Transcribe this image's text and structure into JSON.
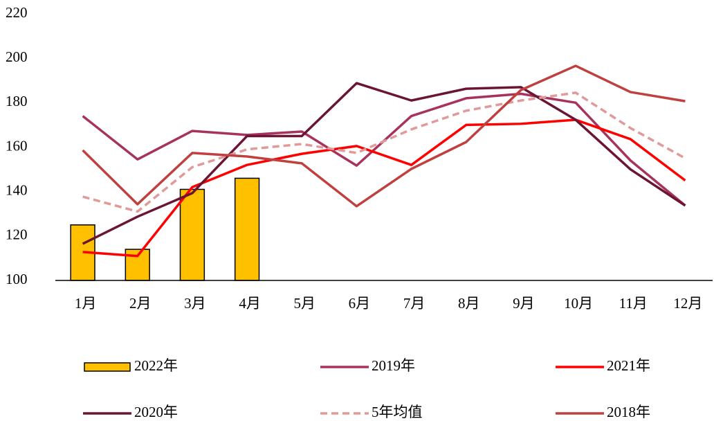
{
  "chart_data": {
    "type": "combo",
    "categories": [
      "1月",
      "2月",
      "3月",
      "4月",
      "5月",
      "6月",
      "7月",
      "8月",
      "9月",
      "10月",
      "11月",
      "12月"
    ],
    "ylim": [
      100,
      220
    ],
    "yticks": [
      100,
      120,
      140,
      160,
      180,
      200,
      220
    ],
    "series": [
      {
        "name": "2022年",
        "type": "bar",
        "color": "#ffc000",
        "values": [
          125,
          114,
          141,
          146,
          null,
          null,
          null,
          null,
          null,
          null,
          null,
          null
        ]
      },
      {
        "name": "2019年",
        "type": "line",
        "color": "#a8325e",
        "values": [
          174,
          154.5,
          167.3,
          165.5,
          167,
          151.7,
          174,
          182,
          184,
          180,
          154,
          133.7
        ]
      },
      {
        "name": "2021年",
        "type": "line",
        "color": "#ff0000",
        "values": [
          112.8,
          111,
          142,
          152,
          157,
          160.5,
          152,
          170,
          170.5,
          172.3,
          163.6,
          145
        ]
      },
      {
        "name": "2020年",
        "type": "line",
        "color": "#6b1535",
        "values": [
          116.5,
          128.7,
          139.3,
          165,
          165,
          188.8,
          181,
          186.3,
          187,
          172.3,
          150,
          133.7
        ]
      },
      {
        "name": "5年均值",
        "type": "line",
        "dashed": true,
        "color": "#e09a9a",
        "values": [
          137.7,
          131,
          151,
          159,
          161.4,
          157.4,
          168,
          176.4,
          181,
          184.5,
          168.6,
          155
        ]
      },
      {
        "name": "2018年",
        "type": "line",
        "color": "#c0403f",
        "values": [
          158.6,
          134.3,
          157.4,
          155.8,
          152.7,
          133.4,
          150.2,
          162.3,
          185.7,
          196.6,
          184.8,
          180.7
        ]
      }
    ]
  }
}
